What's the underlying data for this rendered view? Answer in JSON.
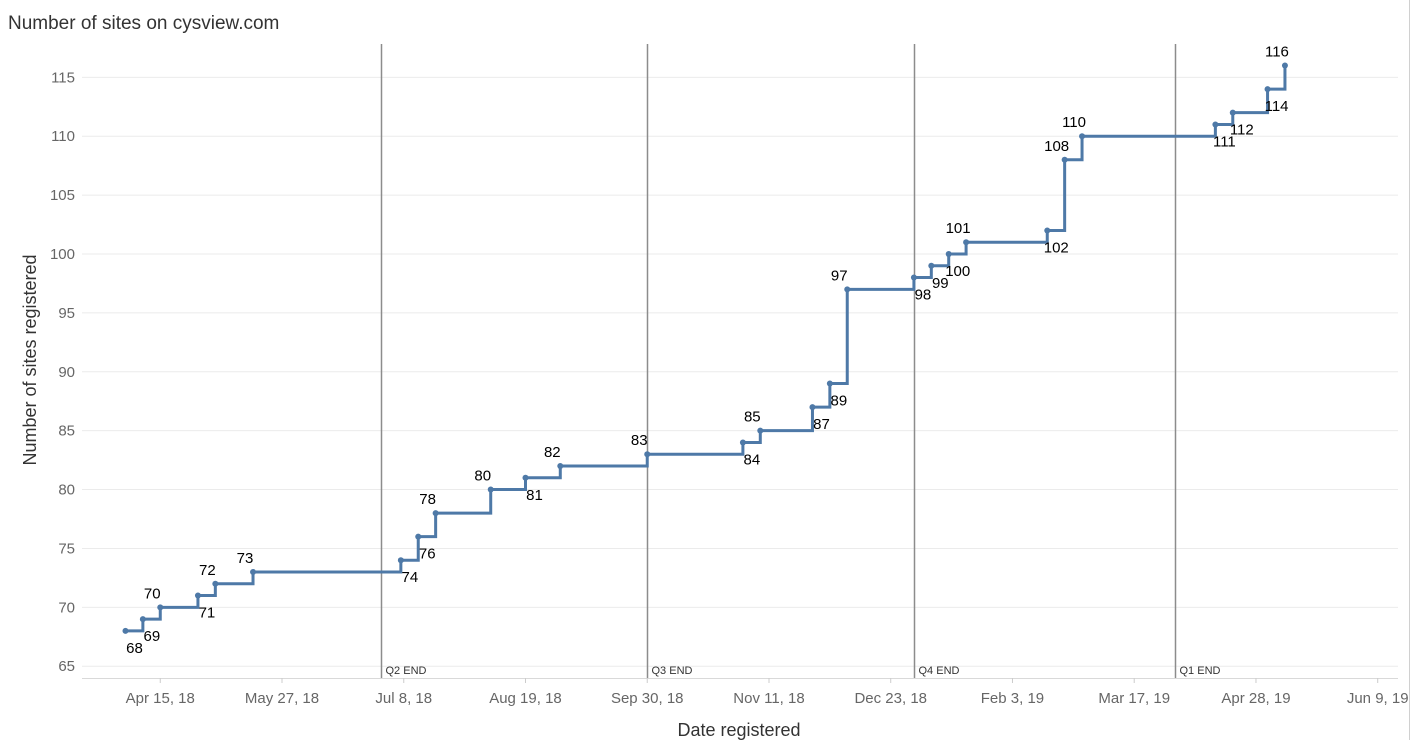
{
  "chart_data": {
    "type": "line",
    "step": true,
    "title": "Number of sites on cysview.com",
    "xlabel": "Date registered",
    "ylabel": "Number of sites registered",
    "ylim": [
      64,
      118
    ],
    "xlim": [
      "2018-03-19",
      "2019-06-16"
    ],
    "y_ticks": [
      65,
      70,
      75,
      80,
      85,
      90,
      95,
      100,
      105,
      110,
      115
    ],
    "x_ticks": [
      {
        "date": "2018-04-15",
        "label": "Apr 15, 18"
      },
      {
        "date": "2018-05-27",
        "label": "May 27, 18"
      },
      {
        "date": "2018-07-08",
        "label": "Jul 8, 18"
      },
      {
        "date": "2018-08-19",
        "label": "Aug 19, 18"
      },
      {
        "date": "2018-09-30",
        "label": "Sep 30, 18"
      },
      {
        "date": "2018-11-11",
        "label": "Nov 11, 18"
      },
      {
        "date": "2018-12-23",
        "label": "Dec 23, 18"
      },
      {
        "date": "2019-02-03",
        "label": "Feb 3, 19"
      },
      {
        "date": "2019-03-17",
        "label": "Mar 17, 19"
      },
      {
        "date": "2019-04-28",
        "label": "Apr 28, 19"
      },
      {
        "date": "2019-06-09",
        "label": "Jun 9, 19"
      }
    ],
    "grid": {
      "horizontal": true,
      "vertical": false
    },
    "reference_lines": [
      {
        "date": "2018-06-30",
        "label": "Q2 END"
      },
      {
        "date": "2018-09-30",
        "label": "Q3 END"
      },
      {
        "date": "2018-12-31",
        "label": "Q4 END"
      },
      {
        "date": "2019-03-31",
        "label": "Q1 END"
      }
    ],
    "series": [
      {
        "color": "#4e79a7",
        "points": [
          {
            "date": "2018-04-03",
            "value": 68,
            "label": "68",
            "pos": "below"
          },
          {
            "date": "2018-04-09",
            "value": 69,
            "label": "69",
            "pos": "below"
          },
          {
            "date": "2018-04-15",
            "value": 70,
            "label": "70",
            "pos": "above"
          },
          {
            "date": "2018-04-28",
            "value": 71,
            "label": "71",
            "pos": "below"
          },
          {
            "date": "2018-05-04",
            "value": 72,
            "label": "72",
            "pos": "above"
          },
          {
            "date": "2018-05-17",
            "value": 73,
            "label": "73",
            "pos": "above"
          },
          {
            "date": "2018-07-07",
            "value": 74,
            "label": "74",
            "pos": "below"
          },
          {
            "date": "2018-07-13",
            "value": 76,
            "label": "76",
            "pos": "below"
          },
          {
            "date": "2018-07-19",
            "value": 78,
            "label": "78",
            "pos": "above"
          },
          {
            "date": "2018-08-07",
            "value": 80,
            "label": "80",
            "pos": "above"
          },
          {
            "date": "2018-08-19",
            "value": 81,
            "label": "81",
            "pos": "below"
          },
          {
            "date": "2018-08-31",
            "value": 82,
            "label": "82",
            "pos": "above"
          },
          {
            "date": "2018-09-30",
            "value": 83,
            "label": "83",
            "pos": "above"
          },
          {
            "date": "2018-11-02",
            "value": 84,
            "label": "84",
            "pos": "below"
          },
          {
            "date": "2018-11-08",
            "value": 85,
            "label": "85",
            "pos": "above"
          },
          {
            "date": "2018-11-26",
            "value": 87,
            "label": "87",
            "pos": "below"
          },
          {
            "date": "2018-12-02",
            "value": 89,
            "label": "89",
            "pos": "below"
          },
          {
            "date": "2018-12-08",
            "value": 97,
            "label": "97",
            "pos": "above"
          },
          {
            "date": "2018-12-31",
            "value": 98,
            "label": "98",
            "pos": "below"
          },
          {
            "date": "2019-01-06",
            "value": 99,
            "label": "99",
            "pos": "below"
          },
          {
            "date": "2019-01-12",
            "value": 100,
            "label": "100",
            "pos": "below"
          },
          {
            "date": "2019-01-18",
            "value": 101,
            "label": "101",
            "pos": "above"
          },
          {
            "date": "2019-02-15",
            "value": 102,
            "label": "102",
            "pos": "below"
          },
          {
            "date": "2019-02-21",
            "value": 108,
            "label": "108",
            "pos": "above"
          },
          {
            "date": "2019-02-27",
            "value": 110,
            "label": "110",
            "pos": "above"
          },
          {
            "date": "2019-04-14",
            "value": 111,
            "label": "111",
            "pos": "below"
          },
          {
            "date": "2019-04-20",
            "value": 112,
            "label": "112",
            "pos": "below"
          },
          {
            "date": "2019-05-02",
            "value": 114,
            "label": "114",
            "pos": "below"
          },
          {
            "date": "2019-05-08",
            "value": 116,
            "label": "116",
            "pos": "above"
          }
        ]
      }
    ]
  }
}
